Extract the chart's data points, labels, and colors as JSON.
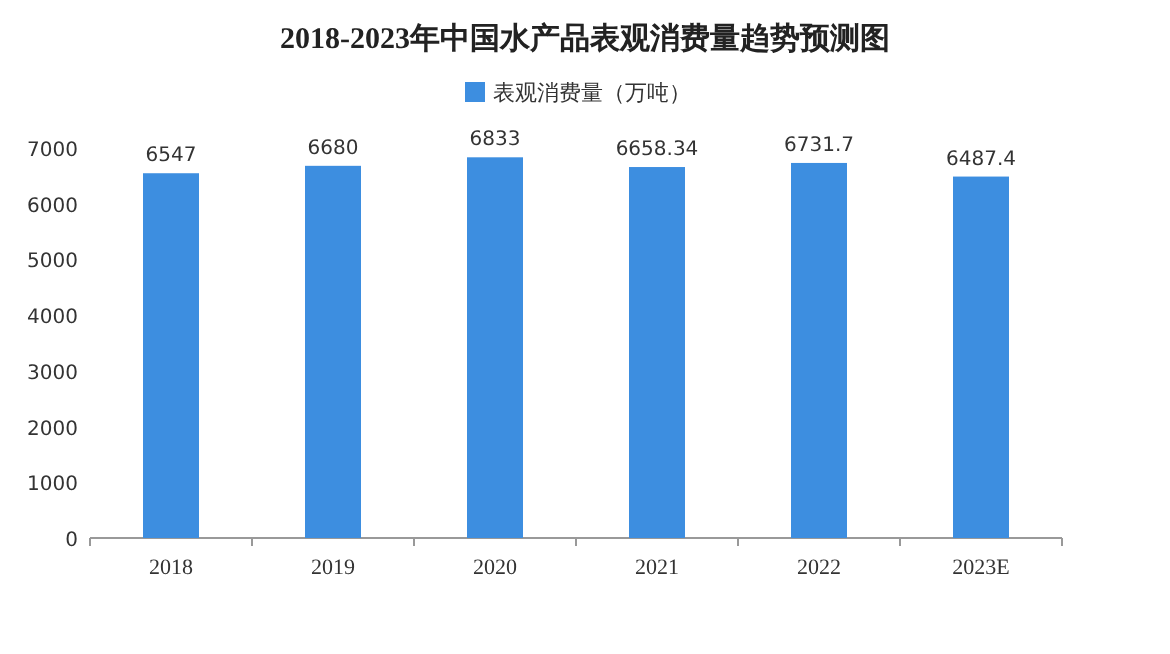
{
  "chart_data": {
    "type": "bar",
    "title": "2018-2023年中国水产品表观消费量趋势预测图",
    "categories": [
      "2018",
      "2019",
      "2020",
      "2021",
      "2022",
      "2023E"
    ],
    "series": [
      {
        "name": "表观消费量（万吨）",
        "color": "#3d8ee0",
        "values": [
          6547,
          6680,
          6833,
          6658.34,
          6731.7,
          6487.4
        ]
      }
    ],
    "ylim": [
      0,
      7000
    ],
    "yticks": [
      0,
      1000,
      2000,
      3000,
      4000,
      5000,
      6000,
      7000
    ],
    "data_labels": true,
    "legend": "top",
    "grid": false
  }
}
